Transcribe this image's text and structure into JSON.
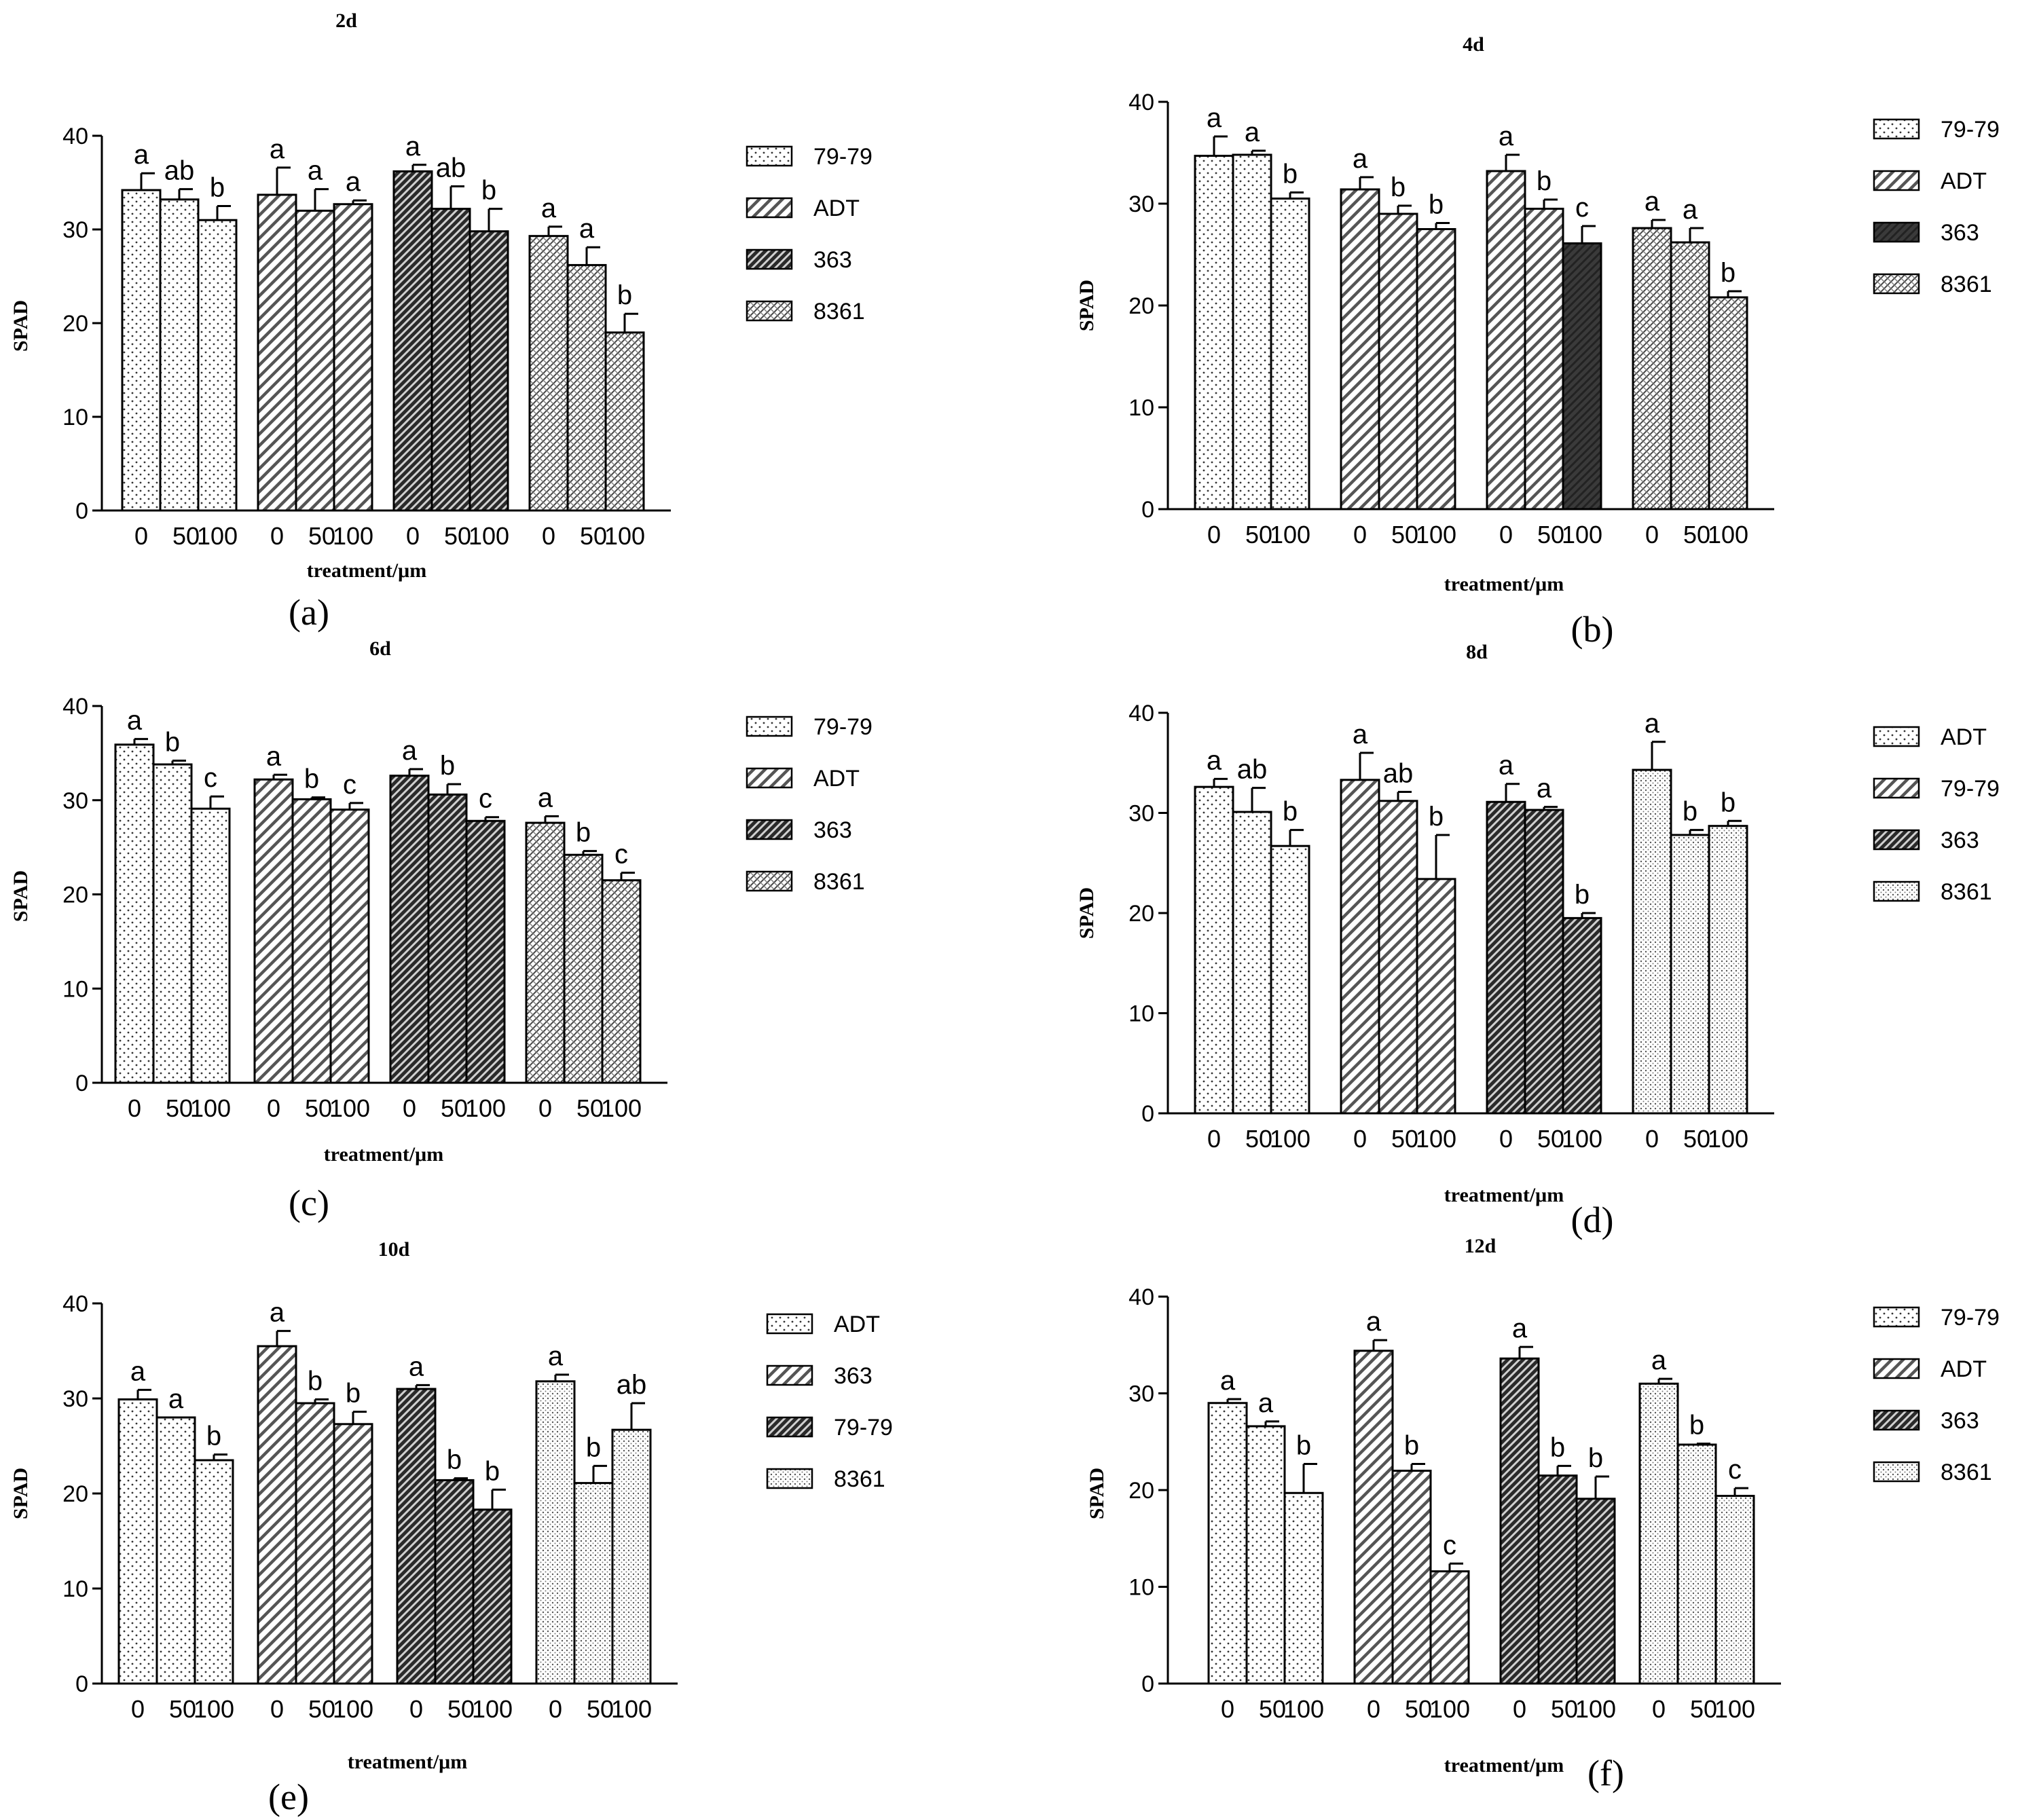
{
  "figure": {
    "panels_count": 6
  },
  "colors": {
    "axis": "#000000",
    "bar_fill": "#ffffff",
    "text": "#000000"
  },
  "chart_data": [
    {
      "panel": "(a)",
      "title": "2d",
      "type": "bar",
      "ylabel": "SPAD",
      "xlabel": "treatment/μm",
      "ylim": [
        0,
        40
      ],
      "yticks": [
        0,
        10,
        20,
        30,
        40
      ],
      "treatments": [
        "0",
        "50",
        "100"
      ],
      "legend": [
        {
          "label": "79-79",
          "pattern": "dots"
        },
        {
          "label": "ADT",
          "pattern": "hatch"
        },
        {
          "label": "363",
          "pattern": "dense-dark"
        },
        {
          "label": "8361",
          "pattern": "cross"
        }
      ],
      "groups": [
        {
          "pattern": "dots",
          "values": [
            34.2,
            33.2,
            31.0
          ],
          "errors": [
            1.8,
            1.1,
            1.5
          ],
          "letters": [
            "a",
            "ab",
            "b"
          ]
        },
        {
          "pattern": "hatch",
          "values": [
            33.7,
            32.0,
            32.7
          ],
          "errors": [
            2.9,
            2.3,
            0.4
          ],
          "letters": [
            "a",
            "a",
            "a"
          ]
        },
        {
          "pattern": "dense-dark",
          "values": [
            36.2,
            32.2,
            29.8
          ],
          "errors": [
            0.7,
            2.4,
            2.4
          ],
          "letters": [
            "a",
            "ab",
            "b"
          ]
        },
        {
          "pattern": "cross",
          "values": [
            29.3,
            26.2,
            19.0
          ],
          "errors": [
            1.0,
            1.9,
            2.0
          ],
          "letters": [
            "a",
            "a",
            "b"
          ]
        }
      ]
    },
    {
      "panel": "(b)",
      "title": "4d",
      "type": "bar",
      "ylabel": "SPAD",
      "xlabel": "treatment/μm",
      "ylim": [
        0,
        40
      ],
      "yticks": [
        0,
        10,
        20,
        30,
        40
      ],
      "treatments": [
        "0",
        "50",
        "100"
      ],
      "legend": [
        {
          "label": "79-79",
          "pattern": "dots"
        },
        {
          "label": "ADT",
          "pattern": "hatch"
        },
        {
          "label": "363",
          "pattern": "dark-solid"
        },
        {
          "label": "8361",
          "pattern": "cross"
        }
      ],
      "groups": [
        {
          "pattern": "dots",
          "values": [
            34.7,
            34.8,
            30.5
          ],
          "errors": [
            1.9,
            0.4,
            0.6
          ],
          "letters": [
            "a",
            "a",
            "b"
          ]
        },
        {
          "pattern": "hatch",
          "values": [
            31.4,
            29.0,
            27.5
          ],
          "errors": [
            1.2,
            0.8,
            0.6
          ],
          "letters": [
            "a",
            "b",
            "b"
          ]
        },
        {
          "pattern": "hatch",
          "values": [
            33.2,
            29.5,
            26.1
          ],
          "errors": [
            1.6,
            0.9,
            1.7
          ],
          "letters": [
            "a",
            "b",
            "c"
          ],
          "dark_last": true
        },
        {
          "pattern": "cross",
          "values": [
            27.6,
            26.2,
            20.8
          ],
          "errors": [
            0.8,
            1.4,
            0.6
          ],
          "letters": [
            "a",
            "a",
            "b"
          ]
        }
      ]
    },
    {
      "panel": "(c)",
      "title": "6d",
      "type": "bar",
      "ylabel": "SPAD",
      "xlabel": "treatment/μm",
      "ylim": [
        0,
        40
      ],
      "yticks": [
        0,
        10,
        20,
        30,
        40
      ],
      "treatments": [
        "0",
        "50",
        "100"
      ],
      "legend": [
        {
          "label": "79-79",
          "pattern": "dots"
        },
        {
          "label": "ADT",
          "pattern": "hatch"
        },
        {
          "label": "363",
          "pattern": "dense-dark"
        },
        {
          "label": "8361",
          "pattern": "cross"
        }
      ],
      "groups": [
        {
          "pattern": "dots",
          "values": [
            35.9,
            33.8,
            29.1
          ],
          "errors": [
            0.6,
            0.4,
            1.3
          ],
          "letters": [
            "a",
            "b",
            "c"
          ]
        },
        {
          "pattern": "hatch",
          "values": [
            32.2,
            30.1,
            29.0
          ],
          "errors": [
            0.5,
            0.2,
            0.7
          ],
          "letters": [
            "a",
            "b",
            "c"
          ]
        },
        {
          "pattern": "dense-dark",
          "values": [
            32.6,
            30.6,
            27.8
          ],
          "errors": [
            0.7,
            1.1,
            0.4
          ],
          "letters": [
            "a",
            "b",
            "c"
          ]
        },
        {
          "pattern": "cross",
          "values": [
            27.6,
            24.2,
            21.5
          ],
          "errors": [
            0.7,
            0.4,
            0.8
          ],
          "letters": [
            "a",
            "b",
            "c"
          ]
        }
      ]
    },
    {
      "panel": "(d)",
      "title": "8d",
      "type": "bar",
      "ylabel": "SPAD",
      "xlabel": "treatment/μm",
      "ylim": [
        0,
        40
      ],
      "yticks": [
        0,
        10,
        20,
        30,
        40
      ],
      "treatments": [
        "0",
        "50",
        "100"
      ],
      "legend": [
        {
          "label": "ADT",
          "pattern": "dots"
        },
        {
          "label": "79-79",
          "pattern": "hatch"
        },
        {
          "label": "363",
          "pattern": "dense-dark"
        },
        {
          "label": "8361",
          "pattern": "fine-dots"
        }
      ],
      "groups": [
        {
          "pattern": "dots",
          "values": [
            32.6,
            30.1,
            26.7
          ],
          "errors": [
            0.8,
            2.4,
            1.6
          ],
          "letters": [
            "a",
            "ab",
            "b"
          ]
        },
        {
          "pattern": "hatch",
          "values": [
            33.3,
            31.2,
            23.4
          ],
          "errors": [
            2.7,
            0.9,
            4.4
          ],
          "letters": [
            "a",
            "ab",
            "b"
          ]
        },
        {
          "pattern": "dense-dark",
          "values": [
            31.1,
            30.3,
            19.5
          ],
          "errors": [
            1.8,
            0.3,
            0.5
          ],
          "letters": [
            "a",
            "a",
            "b"
          ]
        },
        {
          "pattern": "fine-dots",
          "values": [
            34.3,
            27.8,
            28.7
          ],
          "errors": [
            2.8,
            0.5,
            0.5
          ],
          "letters": [
            "a",
            "b",
            "b"
          ]
        }
      ]
    },
    {
      "panel": "(e)",
      "title": "10d",
      "type": "bar",
      "ylabel": "SPAD",
      "xlabel": "treatment/μm",
      "ylim": [
        0,
        40
      ],
      "yticks": [
        0,
        10,
        20,
        30,
        40
      ],
      "treatments": [
        "0",
        "50",
        "100"
      ],
      "legend": [
        {
          "label": "ADT",
          "pattern": "dots"
        },
        {
          "label": "363",
          "pattern": "hatch"
        },
        {
          "label": "79-79",
          "pattern": "dense-dark"
        },
        {
          "label": "8361",
          "pattern": "fine-dots"
        }
      ],
      "groups": [
        {
          "pattern": "dots",
          "values": [
            29.9,
            28.0,
            23.5
          ],
          "errors": [
            1.0,
            0.0,
            0.6
          ],
          "letters": [
            "a",
            "a",
            "b"
          ]
        },
        {
          "pattern": "hatch",
          "values": [
            35.5,
            29.5,
            27.3
          ],
          "errors": [
            1.6,
            0.4,
            1.3
          ],
          "letters": [
            "a",
            "b",
            "b"
          ]
        },
        {
          "pattern": "dense-dark",
          "values": [
            31.0,
            21.4,
            18.3
          ],
          "errors": [
            0.4,
            0.2,
            2.1
          ],
          "letters": [
            "a",
            "b",
            "b"
          ]
        },
        {
          "pattern": "fine-dots",
          "values": [
            31.8,
            21.1,
            26.7
          ],
          "errors": [
            0.7,
            1.8,
            2.8
          ],
          "letters": [
            "a",
            "b",
            "ab"
          ]
        }
      ]
    },
    {
      "panel": "(f)",
      "title": "12d",
      "type": "bar",
      "ylabel": "SPAD",
      "xlabel": "treatment/μm",
      "ylim": [
        0,
        40
      ],
      "yticks": [
        0,
        10,
        20,
        30,
        40
      ],
      "treatments": [
        "0",
        "50",
        "100"
      ],
      "legend": [
        {
          "label": "79-79",
          "pattern": "dots"
        },
        {
          "label": "ADT",
          "pattern": "hatch"
        },
        {
          "label": "363",
          "pattern": "dense-dark"
        },
        {
          "label": "8361",
          "pattern": "fine-dots"
        }
      ],
      "groups": [
        {
          "pattern": "dots",
          "values": [
            29.0,
            26.6,
            19.7
          ],
          "errors": [
            0.4,
            0.5,
            3.0
          ],
          "letters": [
            "a",
            "a",
            "b"
          ]
        },
        {
          "pattern": "hatch",
          "values": [
            34.4,
            22.0,
            11.6
          ],
          "errors": [
            1.1,
            0.7,
            0.8
          ],
          "letters": [
            "a",
            "b",
            "c"
          ]
        },
        {
          "pattern": "dense-dark",
          "values": [
            33.6,
            21.5,
            19.1
          ],
          "errors": [
            1.2,
            1.0,
            2.3
          ],
          "letters": [
            "a",
            "b",
            "b"
          ]
        },
        {
          "pattern": "fine-dots",
          "values": [
            31.0,
            24.7,
            19.4
          ],
          "errors": [
            0.5,
            0.1,
            0.8
          ],
          "letters": [
            "a",
            "b",
            "c"
          ]
        }
      ]
    }
  ]
}
